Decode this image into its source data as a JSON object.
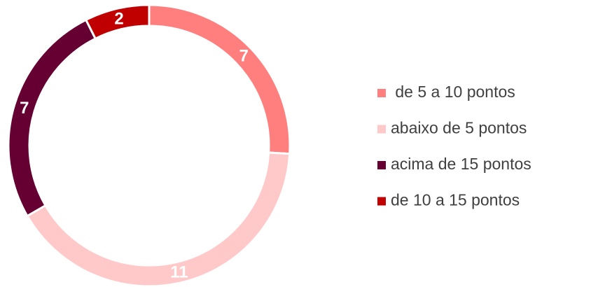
{
  "chart_data": {
    "type": "donut",
    "categories": [
      " de 5 a 10 pontos",
      "abaixo de 5 pontos",
      "acima de 15 pontos",
      "de 10 a 15 pontos"
    ],
    "values": [
      7,
      11,
      7,
      2
    ],
    "colors": [
      "#ff7f7f",
      "#ffc9c9",
      "#660033",
      "#c00000"
    ],
    "legend": "right"
  }
}
